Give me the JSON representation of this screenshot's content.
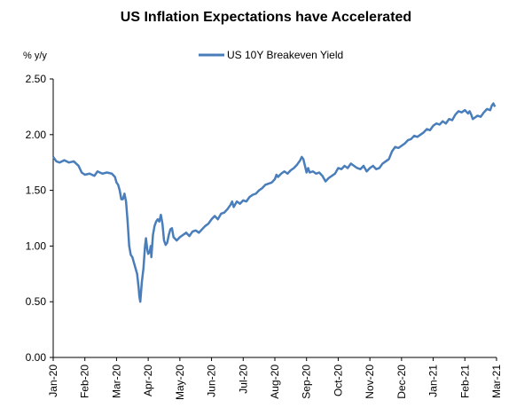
{
  "chart_data": {
    "type": "line",
    "title": "US Inflation Expectations have Accelerated",
    "ylabel": "% y/y",
    "xlabel": "",
    "ylim": [
      0,
      2.5
    ],
    "yticks": [
      "0.00",
      "0.50",
      "1.00",
      "1.50",
      "2.00",
      "2.50"
    ],
    "ytick_values": [
      0,
      0.5,
      1.0,
      1.5,
      2.0,
      2.5
    ],
    "xlim": [
      0,
      14
    ],
    "xticks": [
      "Jan-20",
      "Feb-20",
      "Mar-20",
      "Apr-20",
      "May-20",
      "Jun-20",
      "Jul-20",
      "Aug-20",
      "Sep-20",
      "Oct-20",
      "Nov-20",
      "Dec-20",
      "Jan-21",
      "Feb-21",
      "Mar-21"
    ],
    "grid": false,
    "legend_position": "top-center",
    "series": [
      {
        "name": "US 10Y Breakeven Yield",
        "color": "#4a7ebb",
        "points": [
          [
            0.0,
            1.8
          ],
          [
            0.1,
            1.76
          ],
          [
            0.2,
            1.75
          ],
          [
            0.35,
            1.77
          ],
          [
            0.5,
            1.75
          ],
          [
            0.65,
            1.76
          ],
          [
            0.8,
            1.72
          ],
          [
            0.9,
            1.66
          ],
          [
            1.0,
            1.64
          ],
          [
            1.15,
            1.65
          ],
          [
            1.3,
            1.63
          ],
          [
            1.4,
            1.67
          ],
          [
            1.55,
            1.65
          ],
          [
            1.7,
            1.66
          ],
          [
            1.85,
            1.65
          ],
          [
            1.95,
            1.62
          ],
          [
            2.0,
            1.57
          ],
          [
            2.05,
            1.55
          ],
          [
            2.1,
            1.5
          ],
          [
            2.15,
            1.42
          ],
          [
            2.2,
            1.42
          ],
          [
            2.25,
            1.47
          ],
          [
            2.3,
            1.4
          ],
          [
            2.35,
            1.22
          ],
          [
            2.4,
            1.0
          ],
          [
            2.45,
            0.92
          ],
          [
            2.5,
            0.9
          ],
          [
            2.55,
            0.85
          ],
          [
            2.6,
            0.8
          ],
          [
            2.65,
            0.75
          ],
          [
            2.7,
            0.62
          ],
          [
            2.72,
            0.55
          ],
          [
            2.75,
            0.5
          ],
          [
            2.8,
            0.68
          ],
          [
            2.85,
            0.8
          ],
          [
            2.9,
            1.0
          ],
          [
            2.93,
            1.07
          ],
          [
            2.97,
            0.97
          ],
          [
            3.0,
            0.93
          ],
          [
            3.05,
            0.95
          ],
          [
            3.08,
            1.0
          ],
          [
            3.1,
            0.9
          ],
          [
            3.15,
            1.1
          ],
          [
            3.2,
            1.18
          ],
          [
            3.25,
            1.22
          ],
          [
            3.3,
            1.24
          ],
          [
            3.35,
            1.22
          ],
          [
            3.4,
            1.28
          ],
          [
            3.45,
            1.2
          ],
          [
            3.5,
            1.05
          ],
          [
            3.55,
            1.01
          ],
          [
            3.6,
            1.03
          ],
          [
            3.65,
            1.1
          ],
          [
            3.7,
            1.15
          ],
          [
            3.75,
            1.16
          ],
          [
            3.8,
            1.08
          ],
          [
            3.9,
            1.05
          ],
          [
            4.0,
            1.08
          ],
          [
            4.1,
            1.1
          ],
          [
            4.2,
            1.12
          ],
          [
            4.3,
            1.09
          ],
          [
            4.4,
            1.13
          ],
          [
            4.5,
            1.14
          ],
          [
            4.6,
            1.12
          ],
          [
            4.7,
            1.15
          ],
          [
            4.8,
            1.18
          ],
          [
            4.9,
            1.2
          ],
          [
            5.0,
            1.24
          ],
          [
            5.1,
            1.27
          ],
          [
            5.2,
            1.24
          ],
          [
            5.3,
            1.29
          ],
          [
            5.4,
            1.3
          ],
          [
            5.5,
            1.33
          ],
          [
            5.6,
            1.37
          ],
          [
            5.65,
            1.4
          ],
          [
            5.7,
            1.35
          ],
          [
            5.8,
            1.4
          ],
          [
            5.9,
            1.38
          ],
          [
            6.0,
            1.41
          ],
          [
            6.1,
            1.4
          ],
          [
            6.2,
            1.44
          ],
          [
            6.3,
            1.46
          ],
          [
            6.4,
            1.47
          ],
          [
            6.5,
            1.5
          ],
          [
            6.6,
            1.52
          ],
          [
            6.7,
            1.55
          ],
          [
            6.8,
            1.56
          ],
          [
            6.9,
            1.57
          ],
          [
            7.0,
            1.6
          ],
          [
            7.05,
            1.64
          ],
          [
            7.1,
            1.62
          ],
          [
            7.2,
            1.65
          ],
          [
            7.3,
            1.67
          ],
          [
            7.4,
            1.65
          ],
          [
            7.5,
            1.68
          ],
          [
            7.6,
            1.7
          ],
          [
            7.7,
            1.73
          ],
          [
            7.8,
            1.77
          ],
          [
            7.85,
            1.8
          ],
          [
            7.9,
            1.78
          ],
          [
            7.95,
            1.72
          ],
          [
            8.0,
            1.66
          ],
          [
            8.05,
            1.7
          ],
          [
            8.1,
            1.66
          ],
          [
            8.2,
            1.67
          ],
          [
            8.3,
            1.65
          ],
          [
            8.4,
            1.66
          ],
          [
            8.5,
            1.63
          ],
          [
            8.6,
            1.58
          ],
          [
            8.7,
            1.61
          ],
          [
            8.8,
            1.63
          ],
          [
            8.9,
            1.65
          ],
          [
            9.0,
            1.7
          ],
          [
            9.1,
            1.69
          ],
          [
            9.2,
            1.72
          ],
          [
            9.3,
            1.7
          ],
          [
            9.4,
            1.74
          ],
          [
            9.5,
            1.72
          ],
          [
            9.6,
            1.7
          ],
          [
            9.7,
            1.69
          ],
          [
            9.8,
            1.72
          ],
          [
            9.9,
            1.67
          ],
          [
            10.0,
            1.7
          ],
          [
            10.1,
            1.72
          ],
          [
            10.2,
            1.69
          ],
          [
            10.3,
            1.7
          ],
          [
            10.4,
            1.74
          ],
          [
            10.5,
            1.76
          ],
          [
            10.6,
            1.78
          ],
          [
            10.7,
            1.85
          ],
          [
            10.8,
            1.89
          ],
          [
            10.9,
            1.88
          ],
          [
            11.0,
            1.9
          ],
          [
            11.1,
            1.92
          ],
          [
            11.2,
            1.95
          ],
          [
            11.3,
            1.96
          ],
          [
            11.4,
            1.99
          ],
          [
            11.5,
            1.98
          ],
          [
            11.6,
            2.0
          ],
          [
            11.7,
            2.02
          ],
          [
            11.8,
            2.05
          ],
          [
            11.9,
            2.04
          ],
          [
            12.0,
            2.08
          ],
          [
            12.1,
            2.1
          ],
          [
            12.2,
            2.09
          ],
          [
            12.3,
            2.12
          ],
          [
            12.4,
            2.1
          ],
          [
            12.5,
            2.14
          ],
          [
            12.6,
            2.13
          ],
          [
            12.7,
            2.18
          ],
          [
            12.8,
            2.21
          ],
          [
            12.9,
            2.2
          ],
          [
            13.0,
            2.22
          ],
          [
            13.1,
            2.19
          ],
          [
            13.15,
            2.21
          ],
          [
            13.2,
            2.18
          ],
          [
            13.25,
            2.14
          ],
          [
            13.3,
            2.15
          ],
          [
            13.4,
            2.17
          ],
          [
            13.5,
            2.16
          ],
          [
            13.6,
            2.2
          ],
          [
            13.7,
            2.23
          ],
          [
            13.8,
            2.22
          ],
          [
            13.85,
            2.26
          ],
          [
            13.9,
            2.28
          ],
          [
            13.95,
            2.25
          ]
        ]
      }
    ]
  }
}
